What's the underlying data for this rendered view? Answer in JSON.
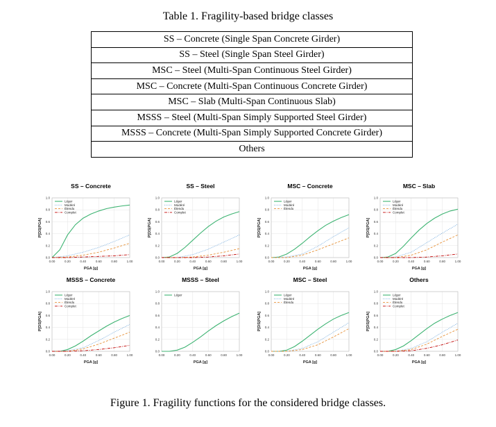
{
  "table_caption": "Table 1. Fragility-based bridge classes",
  "table_rows": [
    "SS – Concrete (Single Span Concrete Girder)",
    "SS – Steel (Single Span Steel Girder)",
    "MSC – Steel (Multi-Span Continuous Steel Girder)",
    "MSC – Concrete (Multi-Span Continuous Concrete Girder)",
    "MSC – Slab (Multi-Span Continuous Slab)",
    "MSSS – Steel (Multi-Span Simply Supported Steel Girder)",
    "MSSS – Concrete (Multi-Span Simply Supported Concrete Girder)",
    "Others"
  ],
  "figure_caption": "Figure 1. Fragility functions for the considered bridge classes.",
  "chart_data": [
    {
      "type": "line",
      "title": "SS – Concrete",
      "xlabel": "PGA [g]",
      "ylabel": "P[DS|PGA]",
      "xlim": [
        0,
        1
      ],
      "ylim": [
        0,
        1
      ],
      "x_ticks": [
        "0.00",
        "0.20",
        "0.40",
        "0.60",
        "0.80",
        "1.00"
      ],
      "y_ticks": [
        "0.0",
        "0.2",
        "0.4",
        "0.6",
        "0.8",
        "1.0"
      ],
      "legend": "top-left",
      "series": [
        {
          "name": "Léger",
          "color": "#3cb371",
          "dash": "solid",
          "x": [
            0,
            0.1,
            0.2,
            0.3,
            0.4,
            0.5,
            0.6,
            0.7,
            0.8,
            0.9,
            1.0
          ],
          "y": [
            0,
            0.13,
            0.38,
            0.55,
            0.66,
            0.73,
            0.78,
            0.82,
            0.845,
            0.865,
            0.88
          ]
        },
        {
          "name": "Modéré",
          "color": "#6fa8dc",
          "dash": "dot",
          "x": [
            0,
            0.2,
            0.4,
            0.6,
            0.8,
            1.0
          ],
          "y": [
            0,
            0.03,
            0.09,
            0.17,
            0.27,
            0.38
          ]
        },
        {
          "name": "Étendu",
          "color": "#e69138",
          "dash": "dash",
          "x": [
            0,
            0.2,
            0.4,
            0.6,
            0.8,
            1.0
          ],
          "y": [
            0,
            0.01,
            0.04,
            0.09,
            0.16,
            0.24
          ]
        },
        {
          "name": "Complet",
          "color": "#c00000",
          "dash": "dashdot",
          "x": [
            0,
            0.2,
            0.4,
            0.6,
            0.8,
            1.0
          ],
          "y": [
            0,
            0.0,
            0.01,
            0.02,
            0.03,
            0.05
          ]
        }
      ]
    },
    {
      "type": "line",
      "title": "SS – Steel",
      "xlabel": "PGA [g]",
      "ylabel": "P[DS|PGA]",
      "xlim": [
        0,
        1
      ],
      "ylim": [
        0,
        1
      ],
      "x_ticks": [
        "0.00",
        "0.20",
        "0.40",
        "0.60",
        "0.80",
        "1.00"
      ],
      "y_ticks": [
        "0.0",
        "0.2",
        "0.4",
        "0.6",
        "0.8",
        "1.0"
      ],
      "legend": "top-left",
      "series": [
        {
          "name": "Léger",
          "color": "#3cb371",
          "dash": "solid",
          "x": [
            0,
            0.1,
            0.2,
            0.3,
            0.4,
            0.5,
            0.6,
            0.7,
            0.8,
            0.9,
            1.0
          ],
          "y": [
            0,
            0.01,
            0.07,
            0.17,
            0.29,
            0.41,
            0.52,
            0.61,
            0.68,
            0.73,
            0.77
          ]
        },
        {
          "name": "Modéré",
          "color": "#6fa8dc",
          "dash": "dot",
          "x": [
            0,
            0.2,
            0.4,
            0.6,
            0.8,
            1.0
          ],
          "y": [
            0,
            0.0,
            0.05,
            0.14,
            0.26,
            0.38
          ]
        },
        {
          "name": "Étendu",
          "color": "#e69138",
          "dash": "dash",
          "x": [
            0,
            0.2,
            0.4,
            0.6,
            0.8,
            1.0
          ],
          "y": [
            0,
            0.0,
            0.01,
            0.04,
            0.09,
            0.15
          ]
        },
        {
          "name": "Complet",
          "color": "#c00000",
          "dash": "dashdot",
          "x": [
            0,
            0.2,
            0.4,
            0.6,
            0.8,
            1.0
          ],
          "y": [
            0,
            0.0,
            0.0,
            0.01,
            0.03,
            0.06
          ]
        }
      ]
    },
    {
      "type": "line",
      "title": "MSC – Concrete",
      "xlabel": "PGA [g]",
      "ylabel": "P[DS|PGA]",
      "xlim": [
        0,
        1
      ],
      "ylim": [
        0,
        1
      ],
      "x_ticks": [
        "0.00",
        "0.20",
        "0.40",
        "0.60",
        "0.80",
        "1.00"
      ],
      "y_ticks": [
        "0.0",
        "0.2",
        "0.4",
        "0.6",
        "0.8",
        "1.0"
      ],
      "legend": "top-left",
      "series": [
        {
          "name": "Léger",
          "color": "#3cb371",
          "dash": "solid",
          "x": [
            0,
            0.1,
            0.2,
            0.3,
            0.4,
            0.5,
            0.6,
            0.7,
            0.8,
            0.9,
            1.0
          ],
          "y": [
            0,
            0.01,
            0.06,
            0.14,
            0.24,
            0.35,
            0.45,
            0.54,
            0.61,
            0.67,
            0.72
          ]
        },
        {
          "name": "Modéré",
          "color": "#6fa8dc",
          "dash": "dot",
          "x": [
            0,
            0.2,
            0.4,
            0.6,
            0.8,
            1.0
          ],
          "y": [
            0,
            0.01,
            0.06,
            0.19,
            0.35,
            0.5
          ]
        },
        {
          "name": "Étendu",
          "color": "#e69138",
          "dash": "dash",
          "x": [
            0,
            0.2,
            0.4,
            0.6,
            0.8,
            1.0
          ],
          "y": [
            0,
            0.0,
            0.04,
            0.13,
            0.23,
            0.33
          ]
        }
      ]
    },
    {
      "type": "line",
      "title": "MSC – Slab",
      "xlabel": "PGA [g]",
      "ylabel": "P[DS|PGA]",
      "xlim": [
        0,
        1
      ],
      "ylim": [
        0,
        1
      ],
      "x_ticks": [
        "0.00",
        "0.20",
        "0.40",
        "0.60",
        "0.80",
        "1.00"
      ],
      "y_ticks": [
        "0.0",
        "0.2",
        "0.4",
        "0.6",
        "0.8",
        "1.0"
      ],
      "legend": "top-left",
      "series": [
        {
          "name": "Léger",
          "color": "#3cb371",
          "dash": "solid",
          "x": [
            0,
            0.1,
            0.2,
            0.3,
            0.4,
            0.5,
            0.6,
            0.7,
            0.8,
            0.9,
            1.0
          ],
          "y": [
            0,
            0.01,
            0.07,
            0.19,
            0.33,
            0.46,
            0.57,
            0.66,
            0.73,
            0.78,
            0.81
          ]
        },
        {
          "name": "Modéré",
          "color": "#6fa8dc",
          "dash": "dot",
          "x": [
            0,
            0.2,
            0.4,
            0.6,
            0.8,
            1.0
          ],
          "y": [
            0,
            0.01,
            0.09,
            0.25,
            0.41,
            0.56
          ]
        },
        {
          "name": "Étendu",
          "color": "#e69138",
          "dash": "dash",
          "x": [
            0,
            0.2,
            0.4,
            0.6,
            0.8,
            1.0
          ],
          "y": [
            0,
            0.0,
            0.04,
            0.13,
            0.26,
            0.38
          ]
        },
        {
          "name": "Complet",
          "color": "#c00000",
          "dash": "dashdot",
          "x": [
            0,
            0.2,
            0.4,
            0.6,
            0.8,
            1.0
          ],
          "y": [
            0,
            0.0,
            0.0,
            0.01,
            0.03,
            0.06
          ]
        }
      ]
    },
    {
      "type": "line",
      "title": "MSSS – Concrete",
      "xlabel": "PGA [g]",
      "ylabel": "P[DS|PGA]",
      "xlim": [
        0,
        1
      ],
      "ylim": [
        0,
        1
      ],
      "x_ticks": [
        "0.00",
        "0.20",
        "0.40",
        "0.60",
        "0.80",
        "1.00"
      ],
      "y_ticks": [
        "0.0",
        "0.2",
        "0.4",
        "0.6",
        "0.8",
        "1.0"
      ],
      "legend": "top-left",
      "series": [
        {
          "name": "Léger",
          "color": "#3cb371",
          "dash": "solid",
          "x": [
            0,
            0.1,
            0.2,
            0.3,
            0.4,
            0.5,
            0.6,
            0.7,
            0.8,
            0.9,
            1.0
          ],
          "y": [
            0,
            0.0,
            0.03,
            0.09,
            0.17,
            0.26,
            0.34,
            0.42,
            0.49,
            0.55,
            0.6
          ]
        },
        {
          "name": "Modéré",
          "color": "#6fa8dc",
          "dash": "dot",
          "x": [
            0,
            0.2,
            0.4,
            0.6,
            0.8,
            1.0
          ],
          "y": [
            0,
            0.01,
            0.06,
            0.18,
            0.32,
            0.45
          ]
        },
        {
          "name": "Étendu",
          "color": "#e69138",
          "dash": "dash",
          "x": [
            0,
            0.2,
            0.4,
            0.6,
            0.8,
            1.0
          ],
          "y": [
            0,
            0.0,
            0.04,
            0.12,
            0.22,
            0.32
          ]
        },
        {
          "name": "Complet",
          "color": "#c00000",
          "dash": "dashdot",
          "x": [
            0,
            0.2,
            0.4,
            0.6,
            0.8,
            1.0
          ],
          "y": [
            0,
            0.0,
            0.01,
            0.03,
            0.06,
            0.1
          ]
        }
      ]
    },
    {
      "type": "line",
      "title": "MSSS – Steel",
      "xlabel": "PGA [g]",
      "ylabel": "",
      "xlim": [
        0,
        1
      ],
      "ylim": [
        0,
        1
      ],
      "x_ticks": [
        "0.00",
        "0.20",
        "0.40",
        "0.60",
        "0.80",
        "1.00"
      ],
      "y_ticks": [
        "0.0",
        "0.2",
        "0.4",
        "0.6",
        "0.8",
        "1.0"
      ],
      "legend": "top-left",
      "series": [
        {
          "name": "Léger",
          "color": "#3cb371",
          "dash": "solid",
          "x": [
            0,
            0.1,
            0.2,
            0.3,
            0.4,
            0.5,
            0.6,
            0.7,
            0.8,
            0.9,
            1.0
          ],
          "y": [
            0,
            0.0,
            0.02,
            0.07,
            0.15,
            0.24,
            0.34,
            0.43,
            0.51,
            0.58,
            0.64
          ]
        }
      ]
    },
    {
      "type": "line",
      "title": "MSC – Steel",
      "xlabel": "PGA [g]",
      "ylabel": "P[DS|PGA]",
      "xlim": [
        0,
        1
      ],
      "ylim": [
        0,
        1
      ],
      "x_ticks": [
        "0.00",
        "0.20",
        "0.40",
        "0.60",
        "0.80",
        "1.00"
      ],
      "y_ticks": [
        "0.0",
        "0.2",
        "0.4",
        "0.6",
        "0.8",
        "1.0"
      ],
      "legend": "top-left",
      "series": [
        {
          "name": "Léger",
          "color": "#3cb371",
          "dash": "solid",
          "x": [
            0,
            0.1,
            0.2,
            0.3,
            0.4,
            0.5,
            0.6,
            0.7,
            0.8,
            0.9,
            1.0
          ],
          "y": [
            0,
            0.0,
            0.02,
            0.08,
            0.17,
            0.27,
            0.37,
            0.46,
            0.54,
            0.6,
            0.65
          ]
        },
        {
          "name": "Modéré",
          "color": "#6fa8dc",
          "dash": "dot",
          "x": [
            0,
            0.2,
            0.4,
            0.6,
            0.8,
            1.0
          ],
          "y": [
            0,
            0.0,
            0.05,
            0.16,
            0.32,
            0.48
          ]
        },
        {
          "name": "Étendu",
          "color": "#e69138",
          "dash": "dash",
          "x": [
            0,
            0.2,
            0.4,
            0.6,
            0.8,
            1.0
          ],
          "y": [
            0,
            0.0,
            0.03,
            0.11,
            0.24,
            0.38
          ]
        }
      ]
    },
    {
      "type": "line",
      "title": "Others",
      "xlabel": "PGA [g]",
      "ylabel": "P[DS|PGA]",
      "xlim": [
        0,
        1
      ],
      "ylim": [
        0,
        1
      ],
      "x_ticks": [
        "0.00",
        "0.20",
        "0.40",
        "0.60",
        "0.80",
        "1.00"
      ],
      "y_ticks": [
        "0.0",
        "0.2",
        "0.4",
        "0.6",
        "0.8",
        "1.0"
      ],
      "legend": "top-left",
      "series": [
        {
          "name": "Léger",
          "color": "#3cb371",
          "dash": "solid",
          "x": [
            0,
            0.1,
            0.2,
            0.3,
            0.4,
            0.5,
            0.6,
            0.7,
            0.8,
            0.9,
            1.0
          ],
          "y": [
            0,
            0.0,
            0.03,
            0.09,
            0.18,
            0.28,
            0.38,
            0.47,
            0.54,
            0.6,
            0.65
          ]
        },
        {
          "name": "Modéré",
          "color": "#6fa8dc",
          "dash": "dot",
          "x": [
            0,
            0.2,
            0.4,
            0.6,
            0.8,
            1.0
          ],
          "y": [
            0,
            0.0,
            0.05,
            0.16,
            0.32,
            0.47
          ]
        },
        {
          "name": "Étendu",
          "color": "#e69138",
          "dash": "dash",
          "x": [
            0,
            0.2,
            0.4,
            0.6,
            0.8,
            1.0
          ],
          "y": [
            0,
            0.0,
            0.03,
            0.12,
            0.25,
            0.37
          ]
        },
        {
          "name": "Complet",
          "color": "#c00000",
          "dash": "dashdot",
          "x": [
            0,
            0.2,
            0.4,
            0.6,
            0.8,
            1.0
          ],
          "y": [
            0,
            0.0,
            0.01,
            0.05,
            0.11,
            0.19
          ]
        }
      ]
    }
  ]
}
